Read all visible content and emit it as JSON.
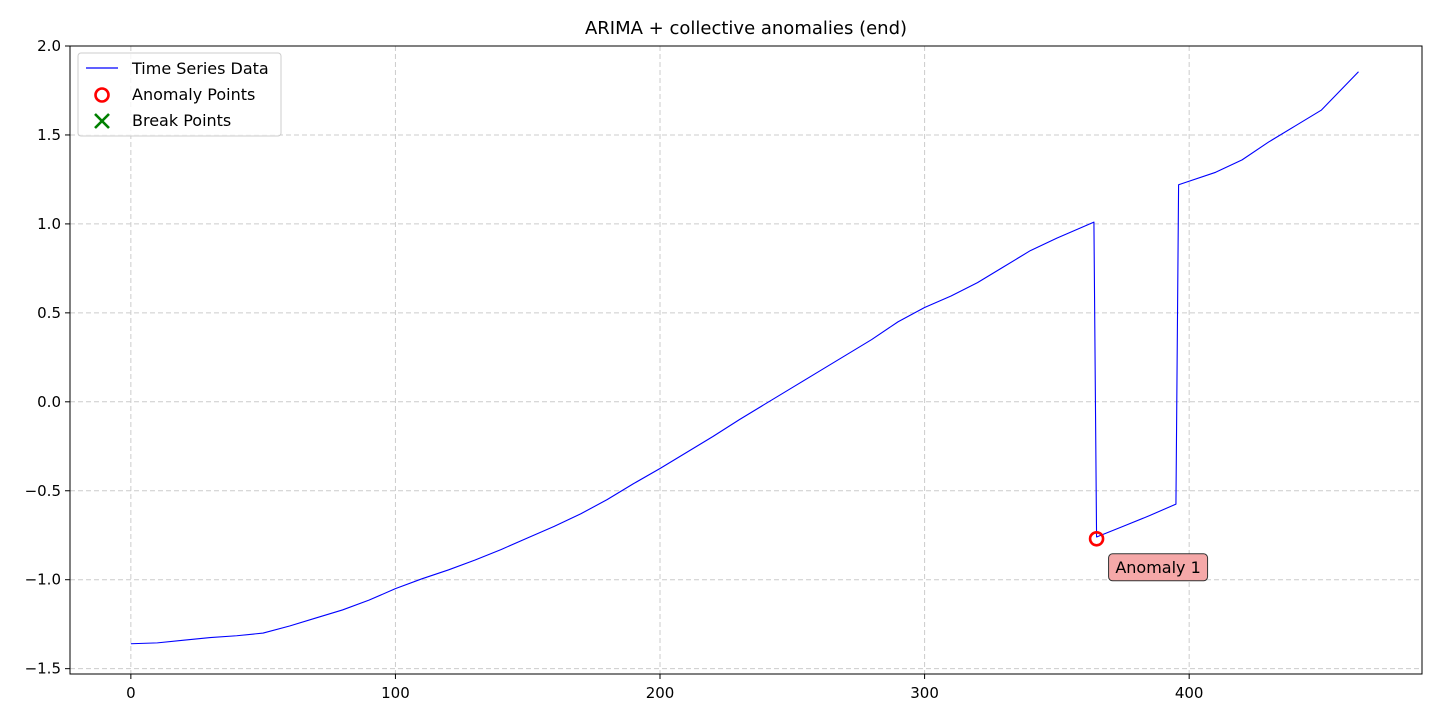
{
  "chart_data": {
    "type": "line",
    "title": "ARIMA + collective anomalies (end)",
    "xlabel": "",
    "ylabel": "",
    "xlim": [
      -23,
      488
    ],
    "ylim": [
      -1.53,
      2.0
    ],
    "x_ticks": [
      0,
      100,
      200,
      300,
      400
    ],
    "y_ticks": [
      -1.5,
      -1.0,
      -0.5,
      0.0,
      0.5,
      1.0,
      1.5,
      2.0
    ],
    "x_tick_labels": [
      "0",
      "100",
      "200",
      "300",
      "400"
    ],
    "y_tick_labels": [
      "−1.5",
      "−1.0",
      "−0.5",
      "0.0",
      "0.5",
      "1.0",
      "1.5",
      "2.0"
    ],
    "grid": true,
    "legend_position": "top-left",
    "series": [
      {
        "name": "Time Series Data",
        "color": "#0000ff",
        "x": [
          0,
          10,
          20,
          30,
          40,
          50,
          60,
          70,
          80,
          90,
          100,
          110,
          120,
          130,
          140,
          150,
          160,
          170,
          180,
          190,
          200,
          210,
          220,
          230,
          240,
          250,
          260,
          270,
          280,
          290,
          300,
          310,
          320,
          330,
          340,
          350,
          364,
          365,
          375,
          385,
          395,
          396,
          410,
          420,
          430,
          440,
          450,
          464
        ],
        "y": [
          -1.36,
          -1.355,
          -1.34,
          -1.325,
          -1.315,
          -1.3,
          -1.26,
          -1.215,
          -1.17,
          -1.115,
          -1.05,
          -0.995,
          -0.945,
          -0.89,
          -0.83,
          -0.765,
          -0.7,
          -0.63,
          -0.55,
          -0.46,
          -0.375,
          -0.285,
          -0.195,
          -0.1,
          -0.01,
          0.08,
          0.17,
          0.26,
          0.35,
          0.45,
          0.53,
          0.595,
          0.67,
          0.76,
          0.85,
          0.92,
          1.01,
          -0.76,
          -0.7,
          -0.64,
          -0.575,
          1.22,
          1.29,
          1.36,
          1.46,
          1.55,
          1.64,
          1.855
        ]
      },
      {
        "name": "Anomaly Points",
        "marker": "circle",
        "color": "#ff0000",
        "x": [
          365
        ],
        "y": [
          -0.77
        ]
      },
      {
        "name": "Break Points",
        "marker": "x",
        "color": "#008000",
        "x": [],
        "y": []
      }
    ],
    "annotations": [
      {
        "text": "Anomaly 1",
        "x": 365,
        "y": -0.77,
        "box_color": "#f4a3a3"
      }
    ]
  }
}
